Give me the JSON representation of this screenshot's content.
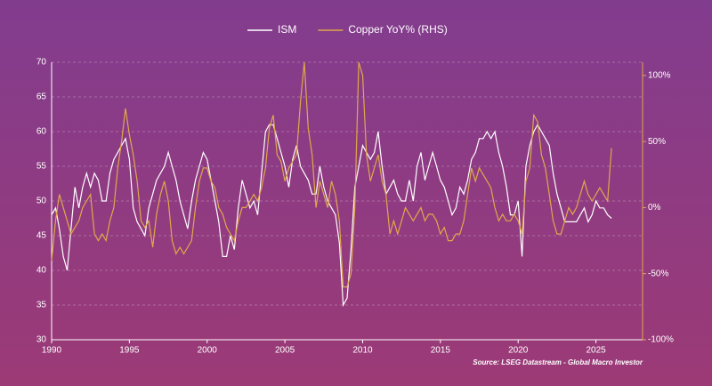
{
  "chart_data": {
    "type": "line",
    "source": "Source: LSEG Datastream - Global Macro Investor",
    "x": [
      1990,
      1990.25,
      1990.5,
      1990.75,
      1991,
      1991.25,
      1991.5,
      1991.75,
      1992,
      1992.25,
      1992.5,
      1992.75,
      1993,
      1993.25,
      1993.5,
      1993.75,
      1994,
      1994.25,
      1994.5,
      1994.75,
      1995,
      1995.25,
      1995.5,
      1995.75,
      1996,
      1996.25,
      1996.5,
      1996.75,
      1997,
      1997.25,
      1997.5,
      1997.75,
      1998,
      1998.25,
      1998.5,
      1998.75,
      1999,
      1999.25,
      1999.5,
      1999.75,
      2000,
      2000.25,
      2000.5,
      2000.75,
      2001,
      2001.25,
      2001.5,
      2001.75,
      2002,
      2002.25,
      2002.5,
      2002.75,
      2003,
      2003.25,
      2003.5,
      2003.75,
      2004,
      2004.25,
      2004.5,
      2004.75,
      2005,
      2005.25,
      2005.5,
      2005.75,
      2006,
      2006.25,
      2006.5,
      2006.75,
      2007,
      2007.25,
      2007.5,
      2007.75,
      2008,
      2008.25,
      2008.5,
      2008.75,
      2009,
      2009.25,
      2009.5,
      2009.75,
      2010,
      2010.25,
      2010.5,
      2010.75,
      2011,
      2011.25,
      2011.5,
      2011.75,
      2012,
      2012.25,
      2012.5,
      2012.75,
      2013,
      2013.25,
      2013.5,
      2013.75,
      2014,
      2014.25,
      2014.5,
      2014.75,
      2015,
      2015.25,
      2015.5,
      2015.75,
      2016,
      2016.25,
      2016.5,
      2016.75,
      2017,
      2017.25,
      2017.5,
      2017.75,
      2018,
      2018.25,
      2018.5,
      2018.75,
      2019,
      2019.25,
      2019.5,
      2019.75,
      2020,
      2020.25,
      2020.5,
      2020.75,
      2021,
      2021.25,
      2021.5,
      2021.75,
      2022,
      2022.25,
      2022.5,
      2022.75,
      2023,
      2023.25,
      2023.5,
      2023.75,
      2024,
      2024.25,
      2024.5,
      2024.75,
      2025,
      2025.25,
      2025.5,
      2025.75,
      2026
    ],
    "series": [
      {
        "name": "ISM",
        "color": "#ffffff",
        "values": [
          48,
          49,
          46,
          42,
          40,
          46,
          52,
          49,
          52,
          54,
          52,
          54,
          53,
          50,
          50,
          54,
          56,
          57,
          58,
          59,
          56,
          49,
          47,
          46,
          45,
          49,
          51,
          53,
          54,
          55,
          57,
          55,
          53,
          50,
          48,
          46,
          50,
          53,
          55,
          57,
          56,
          53,
          50,
          47,
          42,
          42,
          45,
          43,
          49,
          53,
          51,
          49,
          50,
          48,
          54,
          60,
          61,
          61,
          59,
          57,
          55,
          52,
          56,
          58,
          55,
          54,
          53,
          51,
          51,
          55,
          52,
          50,
          49,
          48,
          44,
          35,
          36,
          43,
          52,
          55,
          58,
          57,
          56,
          57,
          60,
          55,
          51,
          52,
          53,
          51,
          50,
          50,
          53,
          50,
          55,
          57,
          53,
          55,
          57,
          55,
          53,
          52,
          50,
          48,
          49,
          52,
          51,
          53,
          56,
          57,
          59,
          59,
          60,
          59,
          60,
          57,
          55,
          52,
          48,
          48,
          50,
          42,
          55,
          58,
          60,
          61,
          60,
          59,
          58,
          54,
          51,
          49,
          47,
          47,
          47,
          47,
          48,
          49,
          47,
          48,
          50,
          49,
          49,
          48,
          47.5
        ]
      },
      {
        "name": "Copper YoY% (RHS)",
        "color": "#e0a84a",
        "axis": "y2",
        "values": [
          -40,
          -10,
          10,
          0,
          -10,
          -20,
          -15,
          -10,
          0,
          5,
          10,
          -20,
          -25,
          -20,
          -25,
          -10,
          0,
          30,
          50,
          75,
          55,
          40,
          20,
          -10,
          -15,
          -10,
          -30,
          -5,
          10,
          20,
          5,
          -25,
          -35,
          -30,
          -35,
          -30,
          -25,
          0,
          20,
          30,
          30,
          20,
          15,
          0,
          -5,
          -15,
          -20,
          -25,
          -10,
          0,
          0,
          5,
          10,
          5,
          15,
          30,
          60,
          70,
          40,
          35,
          20,
          30,
          35,
          40,
          80,
          110,
          60,
          40,
          0,
          20,
          10,
          0,
          20,
          10,
          -10,
          -60,
          -60,
          -50,
          0,
          110,
          100,
          40,
          20,
          30,
          40,
          20,
          10,
          -20,
          -10,
          -20,
          -10,
          0,
          -5,
          -10,
          -5,
          0,
          -10,
          -5,
          -5,
          -10,
          -20,
          -15,
          -25,
          -25,
          -20,
          -20,
          -10,
          10,
          30,
          20,
          30,
          25,
          20,
          15,
          0,
          -10,
          -5,
          -10,
          -10,
          -5,
          -10,
          -20,
          20,
          30,
          70,
          65,
          40,
          30,
          10,
          -10,
          -20,
          -20,
          -10,
          0,
          -5,
          0,
          10,
          20,
          10,
          5,
          10,
          15,
          10,
          5,
          45
        ]
      }
    ],
    "xlim": [
      1990,
      2028
    ],
    "xticks": [
      1990,
      1995,
      2000,
      2005,
      2010,
      2015,
      2020,
      2025
    ],
    "ylim": [
      30,
      70
    ],
    "yticks": [
      30,
      35,
      40,
      45,
      50,
      55,
      60,
      65,
      70
    ],
    "y2lim": [
      -100,
      110
    ],
    "y2ticks": [
      {
        "value": -100,
        "label": "-100%"
      },
      {
        "value": -50,
        "label": "-50%"
      },
      {
        "value": 0,
        "label": "0%"
      },
      {
        "value": 50,
        "label": "50%"
      },
      {
        "value": 100,
        "label": "100%"
      }
    ],
    "grid": true,
    "legend": "top"
  }
}
